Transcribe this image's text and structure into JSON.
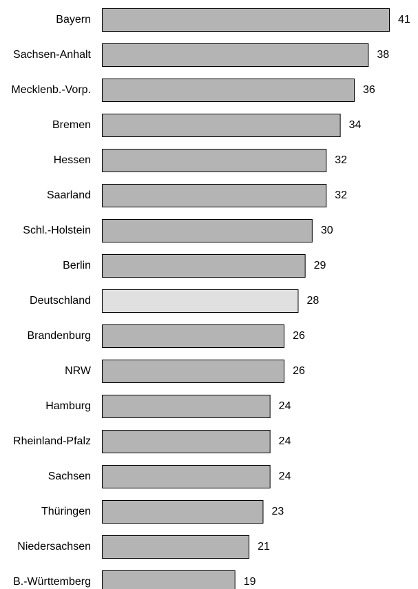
{
  "chart_data": {
    "type": "bar",
    "orientation": "horizontal",
    "categories": [
      "Bayern",
      "Sachsen-Anhalt",
      "Mecklenb.-Vorp.",
      "Bremen",
      "Hessen",
      "Saarland",
      "Schl.-Holstein",
      "Berlin",
      "Deutschland",
      "Brandenburg",
      "NRW",
      "Hamburg",
      "Rheinland-Pfalz",
      "Sachsen",
      "Thüringen",
      "Niedersachsen",
      "B.-Württemberg"
    ],
    "values": [
      41,
      38,
      36,
      34,
      32,
      32,
      30,
      29,
      28,
      26,
      26,
      24,
      24,
      24,
      23,
      21,
      19
    ],
    "highlight_category": "Deutschland",
    "colors": {
      "bar": "#b4b4b4",
      "highlight": "#e0e0e0",
      "outline": "#000000"
    },
    "grid": false,
    "legend": "none",
    "xlim": [
      0,
      41
    ]
  }
}
